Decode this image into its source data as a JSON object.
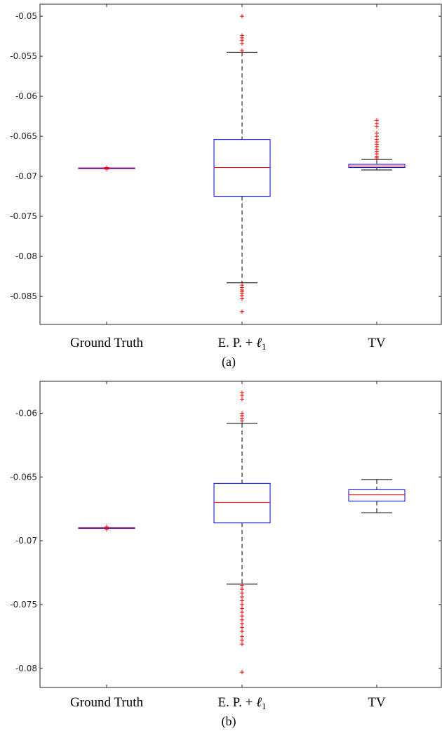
{
  "chart_data": [
    {
      "type": "box",
      "caption": "(a)",
      "categories": [
        "Ground Truth",
        "E. P. + ",
        "TV"
      ],
      "category_subscript_symbol": "ℓ1",
      "ylim": [
        -0.0885,
        -0.0485
      ],
      "yticks": [
        -0.05,
        -0.055,
        -0.06,
        -0.065,
        -0.07,
        -0.075,
        -0.08,
        -0.085
      ],
      "ytick_labels": [
        "-0.05",
        "-0.055",
        "-0.06",
        "-0.065",
        "-0.07",
        "-0.075",
        "-0.08",
        "-0.085"
      ],
      "grid": false,
      "colors": {
        "box": "#0000ff",
        "median": "#ff0000",
        "whisker": "#000000",
        "outlier": "#ff0000"
      },
      "boxes": [
        {
          "category": "Ground Truth",
          "q1": -0.06905,
          "median": -0.069,
          "q3": -0.06895,
          "whisker_low": -0.06905,
          "whisker_high": -0.06895,
          "outliers": [
            -0.0689,
            -0.0691
          ]
        },
        {
          "category": "E. P. + ℓ1",
          "q1": -0.0725,
          "median": -0.0689,
          "q3": -0.0654,
          "whisker_low": -0.0833,
          "whisker_high": -0.0545,
          "outliers": [
            -0.05,
            -0.0524,
            -0.0527,
            -0.053,
            -0.0534,
            -0.0543,
            -0.0836,
            -0.0839,
            -0.0842,
            -0.0844,
            -0.0846,
            -0.0849,
            -0.0853,
            -0.0869
          ]
        },
        {
          "category": "TV",
          "q1": -0.0689,
          "median": -0.0687,
          "q3": -0.0685,
          "whisker_low": -0.0692,
          "whisker_high": -0.0679,
          "outliers": [
            -0.063,
            -0.0634,
            -0.0638,
            -0.0646,
            -0.065,
            -0.0654,
            -0.0657,
            -0.066,
            -0.0663,
            -0.0666,
            -0.0669,
            -0.0672,
            -0.0675,
            -0.0677
          ]
        }
      ]
    },
    {
      "type": "box",
      "caption": "(b)",
      "categories": [
        "Ground Truth",
        "E. P. + ",
        "TV"
      ],
      "category_subscript_symbol": "ℓ1",
      "ylim": [
        -0.0815,
        -0.0575
      ],
      "yticks": [
        -0.06,
        -0.065,
        -0.07,
        -0.075,
        -0.08
      ],
      "ytick_labels": [
        "-0.06",
        "-0.065",
        "-0.07",
        "-0.075",
        "-0.08"
      ],
      "grid": false,
      "colors": {
        "box": "#0000ff",
        "median": "#ff0000",
        "whisker": "#000000",
        "outlier": "#ff0000"
      },
      "boxes": [
        {
          "category": "Ground Truth",
          "q1": -0.06902,
          "median": -0.069,
          "q3": -0.06898,
          "whisker_low": -0.06902,
          "whisker_high": -0.06898,
          "outliers": [
            -0.0689,
            -0.0691
          ]
        },
        {
          "category": "E. P. + ℓ1",
          "q1": -0.0686,
          "median": -0.067,
          "q3": -0.0655,
          "whisker_low": -0.0734,
          "whisker_high": -0.0608,
          "outliers": [
            -0.0584,
            -0.0586,
            -0.0589,
            -0.06,
            -0.0602,
            -0.0604,
            -0.0606,
            -0.0735,
            -0.0738,
            -0.0741,
            -0.0744,
            -0.0747,
            -0.075,
            -0.0753,
            -0.0756,
            -0.0759,
            -0.0762,
            -0.0765,
            -0.0768,
            -0.0771,
            -0.0775,
            -0.0778,
            -0.0781,
            -0.0803
          ]
        },
        {
          "category": "TV",
          "q1": -0.0669,
          "median": -0.0664,
          "q3": -0.066,
          "whisker_low": -0.0678,
          "whisker_high": -0.0652,
          "outliers": []
        }
      ]
    }
  ]
}
